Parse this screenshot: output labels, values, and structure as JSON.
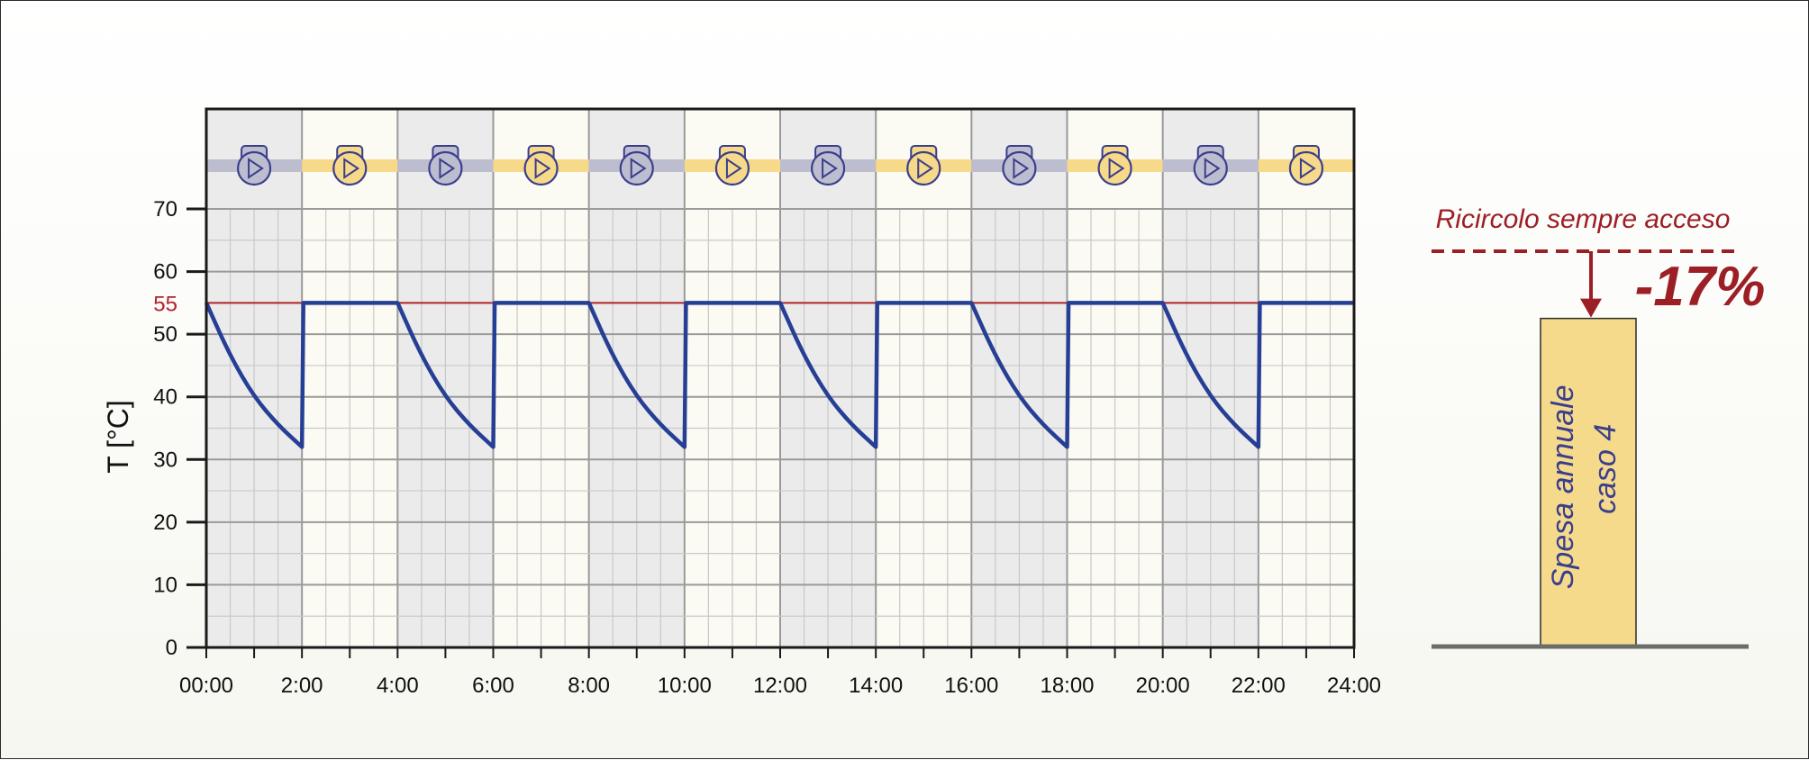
{
  "chart_data": {
    "type": "line",
    "xlabel": "",
    "ylabel": "T [°C]",
    "ylim": [
      0,
      70
    ],
    "xlim": [
      0,
      24
    ],
    "y_ticks": [
      0,
      10,
      20,
      30,
      40,
      50,
      60,
      70
    ],
    "x_ticks": [
      {
        "value": 0,
        "label": "00:00"
      },
      {
        "value": 2,
        "label": "2:00"
      },
      {
        "value": 4,
        "label": "4:00"
      },
      {
        "value": 6,
        "label": "6:00"
      },
      {
        "value": 8,
        "label": "8:00"
      },
      {
        "value": 10,
        "label": "10:00"
      },
      {
        "value": 12,
        "label": "12:00"
      },
      {
        "value": 14,
        "label": "14:00"
      },
      {
        "value": 16,
        "label": "16:00"
      },
      {
        "value": 18,
        "label": "18:00"
      },
      {
        "value": 20,
        "label": "20:00"
      },
      {
        "value": 22,
        "label": "22:00"
      },
      {
        "value": 24,
        "label": "24:00"
      }
    ],
    "grid": true,
    "reference_line": {
      "value": 55,
      "label": "55",
      "color": "#b0242a"
    },
    "series": [
      {
        "name": "",
        "color": "#263f95",
        "points": [
          [
            0,
            55
          ],
          [
            0.5,
            46.5
          ],
          [
            1,
            40
          ],
          [
            1.5,
            35.5
          ],
          [
            2,
            32
          ],
          [
            2.03,
            55
          ],
          [
            4,
            55
          ],
          [
            4.5,
            46.5
          ],
          [
            5,
            40
          ],
          [
            5.5,
            35.5
          ],
          [
            6,
            32
          ],
          [
            6.03,
            55
          ],
          [
            8,
            55
          ],
          [
            8.5,
            46.5
          ],
          [
            9,
            40
          ],
          [
            9.5,
            35.5
          ],
          [
            10,
            32
          ],
          [
            10.03,
            55
          ],
          [
            12,
            55
          ],
          [
            12.5,
            46.5
          ],
          [
            13,
            40
          ],
          [
            13.5,
            35.5
          ],
          [
            14,
            32
          ],
          [
            14.03,
            55
          ],
          [
            16,
            55
          ],
          [
            16.5,
            46.5
          ],
          [
            17,
            40
          ],
          [
            17.5,
            35.5
          ],
          [
            18,
            32
          ],
          [
            18.03,
            55
          ],
          [
            20,
            55
          ],
          [
            20.5,
            46.5
          ],
          [
            21,
            40
          ],
          [
            21.5,
            35.5
          ],
          [
            22,
            32
          ],
          [
            22.03,
            55
          ],
          [
            24,
            55
          ]
        ]
      }
    ],
    "pump_states": [
      "off",
      "on",
      "off",
      "on",
      "off",
      "on",
      "off",
      "on",
      "off",
      "on",
      "off",
      "on"
    ],
    "pump_icon": "pump-icon",
    "colors": {
      "off_band": "#ebebeb",
      "on_band": "#fbfaf3",
      "pump_off": "#bdbdd0",
      "pump_on": "#f7d98a",
      "pump_outline": "#3a3f8c"
    },
    "comparison": {
      "reference_text": "Ricircolo sempre acceso",
      "reduction": -17,
      "reduction_label": "-17%",
      "bar_fraction_of_reference": 0.83,
      "bar_label_line1": "Spesa annuale",
      "bar_label_line2": "caso 4",
      "color": "#9c1f25",
      "bar_color": "#f6da8c",
      "bar_text_color": "#3a3f8c"
    }
  }
}
